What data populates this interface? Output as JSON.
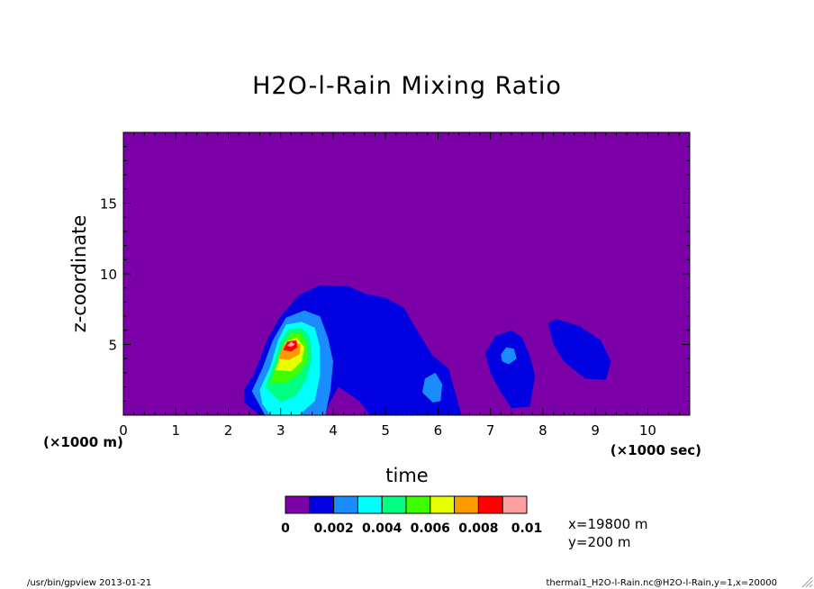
{
  "chart_data": {
    "type": "heatmap",
    "title": "H2O-l-Rain Mixing Ratio",
    "xlabel": "time",
    "ylabel": "z-coordinate",
    "x_unit": "(×1000 sec)",
    "x_extra_unit": "(×1000 m)",
    "xlim": [
      0,
      10.8
    ],
    "ylim": [
      0,
      20
    ],
    "x_ticks": [
      "0",
      "1",
      "2",
      "3",
      "4",
      "5",
      "6",
      "7",
      "8",
      "9",
      "10"
    ],
    "y_ticks": [
      "5",
      "10",
      "15"
    ],
    "colorbar": {
      "levels": [
        0,
        0.001,
        0.002,
        0.003,
        0.004,
        0.005,
        0.006,
        0.007,
        0.008,
        0.009,
        0.01
      ],
      "tick_labels": [
        "0",
        "0.002",
        "0.004",
        "0.006",
        "0.008",
        "0.01"
      ],
      "colors": [
        "#7b00a8",
        "#0000e0",
        "#1a8cff",
        "#00ffff",
        "#00ff80",
        "#40ff00",
        "#e8ff00",
        "#ff9900",
        "#ff0000",
        "#ffa0a0"
      ]
    },
    "regions": [
      {
        "id": "main-cell",
        "level": 1,
        "points": [
          [
            2.3,
            1.8
          ],
          [
            2.5,
            3.0
          ],
          [
            2.75,
            5.4
          ],
          [
            3.0,
            7.0
          ],
          [
            3.35,
            8.5
          ],
          [
            3.75,
            9.2
          ],
          [
            4.3,
            9.1
          ],
          [
            4.6,
            8.6
          ],
          [
            5.0,
            8.3
          ],
          [
            5.35,
            7.6
          ],
          [
            5.6,
            6.0
          ],
          [
            5.9,
            4.2
          ],
          [
            6.2,
            3.3
          ],
          [
            6.45,
            0
          ],
          [
            4.7,
            0
          ],
          [
            4.5,
            1.0
          ],
          [
            4.1,
            2.0
          ],
          [
            3.8,
            0
          ],
          [
            2.6,
            0
          ],
          [
            2.3,
            0.9
          ]
        ]
      },
      {
        "id": "main-cell",
        "level": 2,
        "points": [
          [
            2.45,
            1.7
          ],
          [
            2.65,
            3.3
          ],
          [
            2.85,
            5.3
          ],
          [
            3.1,
            6.9
          ],
          [
            3.45,
            7.4
          ],
          [
            3.75,
            7.0
          ],
          [
            3.9,
            5.5
          ],
          [
            4.0,
            3.8
          ],
          [
            3.95,
            1.8
          ],
          [
            3.85,
            0
          ],
          [
            2.7,
            0
          ]
        ]
      },
      {
        "id": "main-cell",
        "level": 3,
        "points": [
          [
            2.6,
            1.8
          ],
          [
            2.8,
            3.4
          ],
          [
            2.95,
            5.3
          ],
          [
            3.1,
            6.4
          ],
          [
            3.4,
            6.6
          ],
          [
            3.65,
            6.2
          ],
          [
            3.75,
            4.8
          ],
          [
            3.75,
            2.8
          ],
          [
            3.65,
            1.0
          ],
          [
            3.35,
            0
          ],
          [
            2.8,
            0
          ],
          [
            2.65,
            0.8
          ]
        ]
      },
      {
        "id": "main-cell",
        "level": 4,
        "points": [
          [
            2.7,
            2.0
          ],
          [
            2.85,
            3.5
          ],
          [
            3.0,
            5.2
          ],
          [
            3.15,
            6.1
          ],
          [
            3.4,
            6.2
          ],
          [
            3.55,
            5.6
          ],
          [
            3.6,
            4.2
          ],
          [
            3.5,
            2.6
          ],
          [
            3.3,
            1.4
          ],
          [
            3.0,
            0.9
          ]
        ]
      },
      {
        "id": "main-cell",
        "level": 5,
        "points": [
          [
            2.8,
            2.3
          ],
          [
            2.95,
            3.8
          ],
          [
            3.05,
            5.0
          ],
          [
            3.2,
            5.8
          ],
          [
            3.4,
            5.8
          ],
          [
            3.5,
            5.0
          ],
          [
            3.5,
            3.8
          ],
          [
            3.35,
            2.9
          ],
          [
            3.1,
            2.3
          ]
        ]
      },
      {
        "id": "main-cell",
        "level": 6,
        "points": [
          [
            2.9,
            3.2
          ],
          [
            3.0,
            4.3
          ],
          [
            3.1,
            5.2
          ],
          [
            3.3,
            5.5
          ],
          [
            3.45,
            4.8
          ],
          [
            3.4,
            3.8
          ],
          [
            3.2,
            3.1
          ]
        ]
      },
      {
        "id": "main-cell",
        "level": 7,
        "points": [
          [
            2.95,
            4.0
          ],
          [
            3.05,
            4.9
          ],
          [
            3.2,
            5.3
          ],
          [
            3.38,
            5.0
          ],
          [
            3.36,
            4.3
          ],
          [
            3.15,
            3.9
          ]
        ]
      },
      {
        "id": "main-cell",
        "level": 8,
        "points": [
          [
            3.05,
            4.6
          ],
          [
            3.12,
            5.2
          ],
          [
            3.3,
            5.3
          ],
          [
            3.32,
            4.8
          ],
          [
            3.2,
            4.5
          ]
        ]
      },
      {
        "id": "main-cell",
        "level": 9,
        "points": [
          [
            3.12,
            4.9
          ],
          [
            3.2,
            5.2
          ],
          [
            3.27,
            5.0
          ],
          [
            3.2,
            4.85
          ]
        ]
      },
      {
        "id": "small-cell",
        "level": 2,
        "points": [
          [
            5.7,
            1.6
          ],
          [
            5.75,
            2.6
          ],
          [
            5.95,
            3.0
          ],
          [
            6.08,
            2.2
          ],
          [
            6.05,
            1.0
          ],
          [
            5.9,
            0.9
          ]
        ]
      },
      {
        "id": "mid-cell",
        "level": 1,
        "points": [
          [
            6.9,
            4.4
          ],
          [
            7.1,
            5.6
          ],
          [
            7.4,
            6.0
          ],
          [
            7.6,
            5.5
          ],
          [
            7.75,
            4.2
          ],
          [
            7.85,
            2.8
          ],
          [
            7.75,
            0.6
          ],
          [
            7.4,
            0.5
          ],
          [
            7.2,
            1.6
          ],
          [
            7.0,
            3.0
          ]
        ]
      },
      {
        "id": "mid-cell",
        "level": 2,
        "points": [
          [
            7.2,
            4.3
          ],
          [
            7.3,
            4.8
          ],
          [
            7.45,
            4.7
          ],
          [
            7.5,
            4.0
          ],
          [
            7.35,
            3.6
          ],
          [
            7.22,
            3.8
          ]
        ]
      },
      {
        "id": "right-cell",
        "level": 1,
        "points": [
          [
            8.1,
            6.5
          ],
          [
            8.25,
            6.8
          ],
          [
            8.7,
            6.3
          ],
          [
            9.1,
            5.3
          ],
          [
            9.3,
            3.8
          ],
          [
            9.2,
            2.5
          ],
          [
            8.8,
            2.6
          ],
          [
            8.4,
            3.8
          ],
          [
            8.2,
            5.0
          ]
        ]
      }
    ]
  },
  "annotations": {
    "x_info": "x=19800 m",
    "y_info": "y=200 m"
  },
  "footer": {
    "left": "/usr/bin/gpview  2013-01-21",
    "right": "thermal1_H2O-l-Rain.nc@H2O-l-Rain,y=1,x=20000"
  },
  "colors": {
    "background": "#7b00a8",
    "axis": "#000000"
  }
}
